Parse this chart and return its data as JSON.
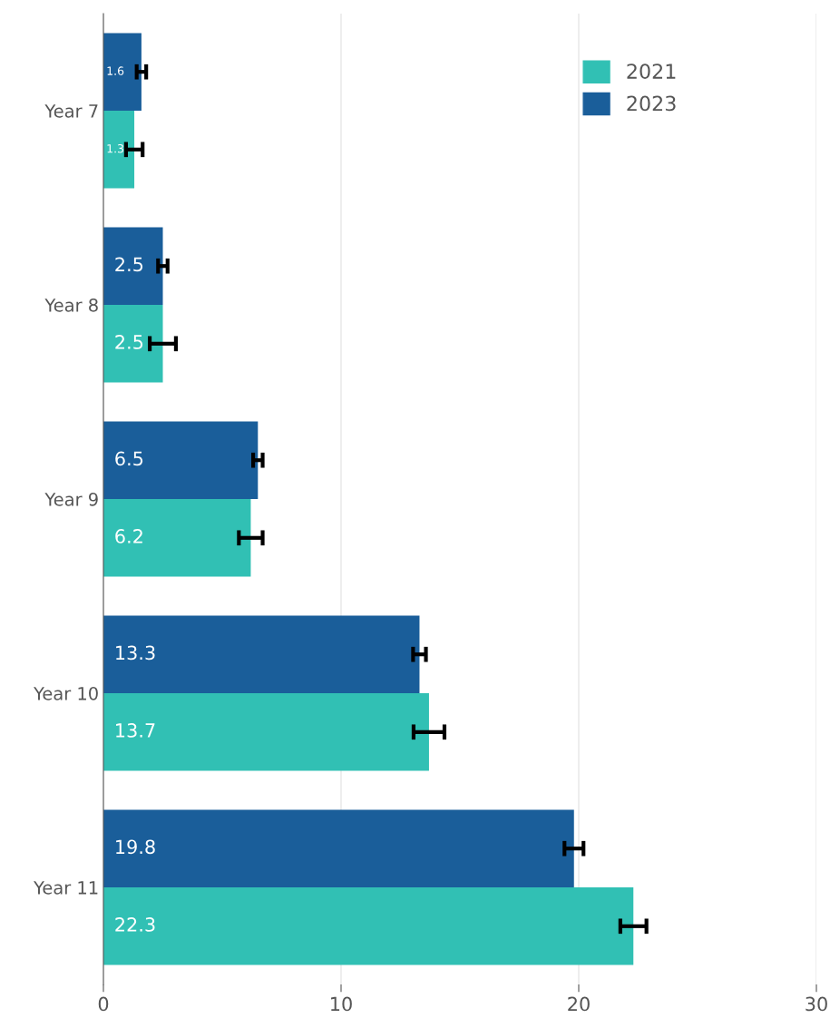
{
  "chart_data": {
    "type": "bar",
    "orientation": "horizontal",
    "categories": [
      "Year 7",
      "Year 8",
      "Year 9",
      "Year 10",
      "Year 11"
    ],
    "series": [
      {
        "name": "2021",
        "color": "#31c0b4",
        "values": [
          1.3,
          2.5,
          6.2,
          13.7,
          22.3
        ],
        "errors": [
          0.35,
          0.55,
          0.5,
          0.65,
          0.55
        ]
      },
      {
        "name": "2023",
        "color": "#1a5e9a",
        "values": [
          1.6,
          2.5,
          6.5,
          13.3,
          19.8
        ],
        "errors": [
          0.2,
          0.2,
          0.2,
          0.27,
          0.4
        ]
      }
    ],
    "xlim": [
      0,
      30
    ],
    "xticks": [
      0,
      10,
      20,
      30
    ],
    "grid": "x",
    "legend": "top right",
    "data_labels": true
  }
}
